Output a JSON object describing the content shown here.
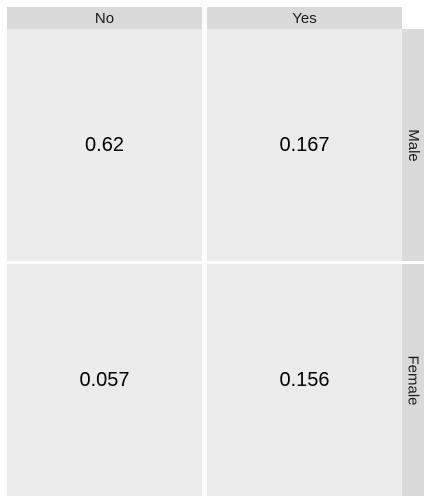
{
  "chart_data": {
    "type": "table",
    "columns": [
      "No",
      "Yes"
    ],
    "rows": [
      "Male",
      "Female"
    ],
    "cells": [
      {
        "row": "Male",
        "column": "No",
        "value": 0.62
      },
      {
        "row": "Male",
        "column": "Yes",
        "value": 0.167
      },
      {
        "row": "Female",
        "column": "No",
        "value": 0.057
      },
      {
        "row": "Female",
        "column": "Yes",
        "value": 0.156
      }
    ],
    "title": "",
    "xlabel": "",
    "ylabel": ""
  },
  "labels": {
    "col_no": "No",
    "col_yes": "Yes",
    "row_male": "Male",
    "row_female": "Female",
    "male_no": "0.62",
    "male_yes": "0.167",
    "female_no": "0.057",
    "female_yes": "0.156"
  },
  "colors": {
    "panel_background": "#ebebeb",
    "strip_background": "#d9d9d9",
    "text": "#000000"
  }
}
